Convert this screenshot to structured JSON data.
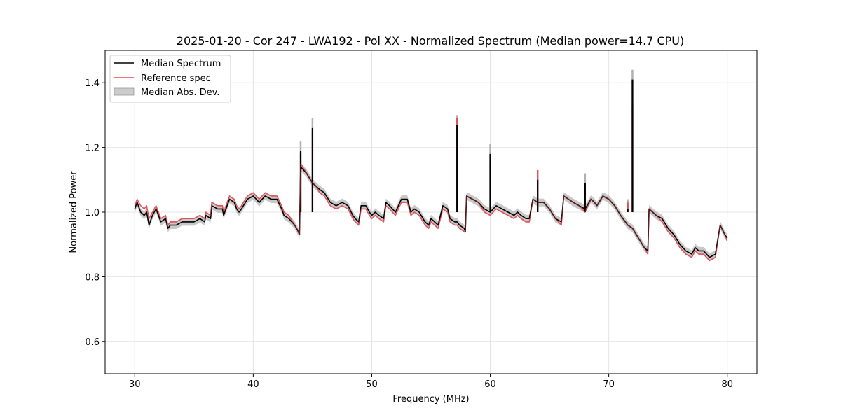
{
  "chart_data": {
    "type": "line",
    "title": "2025-01-20 - Cor 247 - LWA192 - Pol XX - Normalized Spectrum (Median power=14.7 CPU)",
    "xlabel": "Frequency (MHz)",
    "ylabel": "Normalized Power",
    "xlim": [
      27.5,
      82.5
    ],
    "ylim": [
      0.5,
      1.5
    ],
    "xticks": [
      30,
      40,
      50,
      60,
      70,
      80
    ],
    "yticks": [
      0.6,
      0.8,
      1.0,
      1.2,
      1.4
    ],
    "xtick_labels": [
      "30",
      "40",
      "50",
      "60",
      "70",
      "80"
    ],
    "ytick_labels": [
      "0.6",
      "0.8",
      "1.0",
      "1.2",
      "1.4"
    ],
    "grid": true,
    "legend_position": "top-left",
    "legend": [
      "Median Spectrum",
      "Reference spec",
      "Median Abs. Dev."
    ],
    "colors": {
      "median": "#000000",
      "reference": "#e8494f",
      "mad": "#b0b0b0"
    },
    "series": [
      {
        "name": "Median Spectrum",
        "x": [
          30.0,
          30.2,
          30.5,
          30.8,
          31.0,
          31.2,
          31.5,
          31.8,
          32.2,
          32.6,
          32.8,
          33.0,
          33.5,
          34.0,
          34.5,
          35.0,
          35.5,
          35.9,
          36.0,
          36.4,
          36.5,
          37.0,
          37.4,
          37.5,
          38.0,
          38.4,
          38.6,
          38.8,
          39.0,
          39.5,
          40.0,
          40.5,
          41.0,
          41.5,
          42.0,
          42.4,
          42.6,
          43.0,
          43.5,
          43.8,
          43.9,
          44.0,
          44.5,
          45.0,
          45.3,
          45.6,
          46.0,
          46.5,
          47.0,
          47.5,
          48.0,
          48.4,
          48.6,
          48.9,
          49.1,
          49.5,
          49.8,
          50.0,
          50.3,
          50.6,
          51.0,
          51.2,
          51.5,
          52.0,
          52.5,
          53.0,
          53.3,
          53.6,
          54.0,
          54.5,
          54.8,
          55.0,
          55.3,
          55.6,
          56.0,
          56.4,
          56.6,
          57.0,
          57.2,
          57.4,
          57.8,
          57.9,
          58.0,
          58.5,
          59.0,
          59.5,
          60.0,
          60.5,
          61.0,
          61.5,
          62.0,
          62.3,
          62.6,
          63.0,
          63.3,
          63.6,
          64.0,
          64.5,
          65.0,
          65.5,
          66.0,
          66.2,
          66.6,
          67.0,
          67.5,
          68.0,
          68.5,
          68.8,
          69.0,
          69.5,
          70.0,
          70.5,
          71.0,
          71.6,
          72.0,
          72.5,
          73.0,
          73.3,
          73.4,
          74.0,
          74.5,
          75.0,
          75.5,
          76.0,
          76.5,
          77.0,
          77.3,
          77.6,
          78.0,
          78.5,
          79.0,
          79.4,
          79.8,
          80.0
        ],
        "y": [
          1.01,
          1.03,
          1.0,
          0.99,
          1.0,
          0.96,
          0.99,
          1.01,
          0.97,
          0.98,
          0.95,
          0.96,
          0.96,
          0.97,
          0.97,
          0.97,
          0.98,
          0.97,
          0.99,
          0.98,
          1.02,
          1.01,
          1.01,
          0.99,
          1.04,
          1.03,
          1.01,
          1.0,
          1.01,
          1.04,
          1.05,
          1.03,
          1.05,
          1.04,
          1.04,
          1.01,
          0.99,
          0.98,
          0.96,
          0.94,
          0.93,
          1.14,
          1.12,
          1.09,
          1.08,
          1.07,
          1.06,
          1.03,
          1.02,
          1.03,
          1.02,
          0.99,
          0.98,
          0.97,
          1.02,
          1.02,
          1.0,
          0.99,
          1.0,
          0.99,
          0.98,
          1.03,
          1.02,
          1.0,
          1.04,
          1.04,
          1.0,
          1.01,
          1.0,
          0.97,
          0.96,
          0.98,
          0.97,
          0.96,
          1.02,
          1.01,
          0.98,
          0.97,
          0.97,
          0.96,
          0.95,
          0.94,
          1.05,
          1.04,
          1.03,
          1.01,
          1.0,
          1.02,
          1.01,
          1.0,
          0.99,
          1.0,
          0.99,
          0.98,
          0.98,
          1.04,
          1.03,
          1.03,
          1.01,
          0.98,
          0.97,
          1.05,
          1.04,
          1.03,
          1.02,
          1.01,
          1.04,
          1.03,
          1.02,
          1.05,
          1.04,
          1.02,
          0.99,
          0.96,
          0.95,
          0.92,
          0.89,
          0.88,
          1.01,
          0.99,
          0.98,
          0.95,
          0.93,
          0.9,
          0.88,
          0.87,
          0.89,
          0.88,
          0.88,
          0.86,
          0.87,
          0.96,
          0.93,
          0.92
        ],
        "spikes": [
          [
            44.0,
            1.19
          ],
          [
            45.0,
            1.26
          ],
          [
            57.2,
            1.27
          ],
          [
            60.0,
            1.18
          ],
          [
            64.0,
            1.1
          ],
          [
            68.0,
            1.09
          ],
          [
            72.0,
            1.41
          ],
          [
            71.6,
            1.01
          ]
        ]
      },
      {
        "name": "Reference spec",
        "x": [
          30.0,
          30.2,
          30.5,
          30.8,
          31.0,
          31.2,
          31.5,
          31.8,
          32.2,
          32.6,
          32.8,
          33.0,
          33.5,
          34.0,
          34.5,
          35.0,
          35.5,
          35.9,
          36.0,
          36.4,
          36.5,
          37.0,
          37.4,
          37.5,
          38.0,
          38.4,
          38.6,
          38.8,
          39.0,
          39.5,
          40.0,
          40.5,
          41.0,
          41.5,
          42.0,
          42.4,
          42.6,
          43.0,
          43.5,
          43.8,
          43.9,
          44.0,
          44.5,
          45.0,
          45.3,
          45.6,
          46.0,
          46.5,
          47.0,
          47.5,
          48.0,
          48.4,
          48.6,
          48.9,
          49.1,
          49.5,
          49.8,
          50.0,
          50.3,
          50.6,
          51.0,
          51.2,
          51.5,
          52.0,
          52.5,
          53.0,
          53.3,
          53.6,
          54.0,
          54.5,
          54.8,
          55.0,
          55.3,
          55.6,
          56.0,
          56.4,
          56.6,
          57.0,
          57.2,
          57.4,
          57.8,
          57.9,
          58.0,
          58.5,
          59.0,
          59.5,
          60.0,
          60.5,
          61.0,
          61.5,
          62.0,
          62.3,
          62.6,
          63.0,
          63.3,
          63.6,
          64.0,
          64.5,
          65.0,
          65.5,
          66.0,
          66.2,
          66.6,
          67.0,
          67.5,
          68.0,
          68.5,
          68.8,
          69.0,
          69.5,
          70.0,
          70.5,
          71.0,
          71.6,
          72.0,
          72.5,
          73.0,
          73.3,
          73.4,
          74.0,
          74.5,
          75.0,
          75.5,
          76.0,
          76.5,
          77.0,
          77.3,
          77.6,
          78.0,
          78.5,
          79.0,
          79.4,
          79.8,
          80.0
        ],
        "y": [
          1.02,
          1.04,
          1.02,
          1.01,
          1.02,
          0.98,
          1.0,
          1.02,
          0.98,
          0.99,
          0.96,
          0.97,
          0.97,
          0.98,
          0.98,
          0.98,
          0.99,
          0.98,
          1.0,
          0.99,
          1.03,
          1.02,
          1.02,
          1.0,
          1.05,
          1.04,
          1.02,
          1.01,
          1.02,
          1.05,
          1.06,
          1.04,
          1.06,
          1.05,
          1.05,
          1.02,
          1.0,
          0.99,
          0.96,
          0.94,
          0.93,
          1.15,
          1.12,
          1.09,
          1.08,
          1.06,
          1.05,
          1.02,
          1.01,
          1.02,
          1.01,
          0.98,
          0.97,
          0.96,
          1.01,
          1.01,
          0.99,
          0.98,
          0.99,
          0.98,
          0.97,
          1.02,
          1.01,
          0.99,
          1.03,
          1.03,
          0.99,
          1.0,
          0.99,
          0.96,
          0.95,
          0.97,
          0.96,
          0.95,
          1.01,
          1.0,
          0.97,
          0.96,
          0.96,
          0.95,
          0.94,
          0.94,
          1.05,
          1.04,
          1.03,
          1.0,
          0.99,
          1.01,
          1.0,
          0.99,
          0.98,
          0.99,
          0.98,
          0.97,
          0.97,
          1.04,
          1.03,
          1.03,
          1.01,
          0.98,
          0.96,
          1.05,
          1.04,
          1.03,
          1.02,
          1.0,
          1.04,
          1.03,
          1.02,
          1.05,
          1.04,
          1.02,
          0.99,
          0.96,
          0.95,
          0.92,
          0.89,
          0.87,
          1.01,
          0.99,
          0.97,
          0.94,
          0.92,
          0.89,
          0.87,
          0.86,
          0.88,
          0.87,
          0.87,
          0.85,
          0.86,
          0.96,
          0.93,
          0.91
        ],
        "spikes": [
          [
            44.0,
            1.18
          ],
          [
            45.0,
            1.25
          ],
          [
            57.2,
            1.29
          ],
          [
            60.0,
            1.15
          ],
          [
            64.0,
            1.13
          ],
          [
            68.0,
            1.07
          ],
          [
            72.0,
            1.33
          ],
          [
            71.6,
            1.03
          ]
        ]
      }
    ]
  }
}
